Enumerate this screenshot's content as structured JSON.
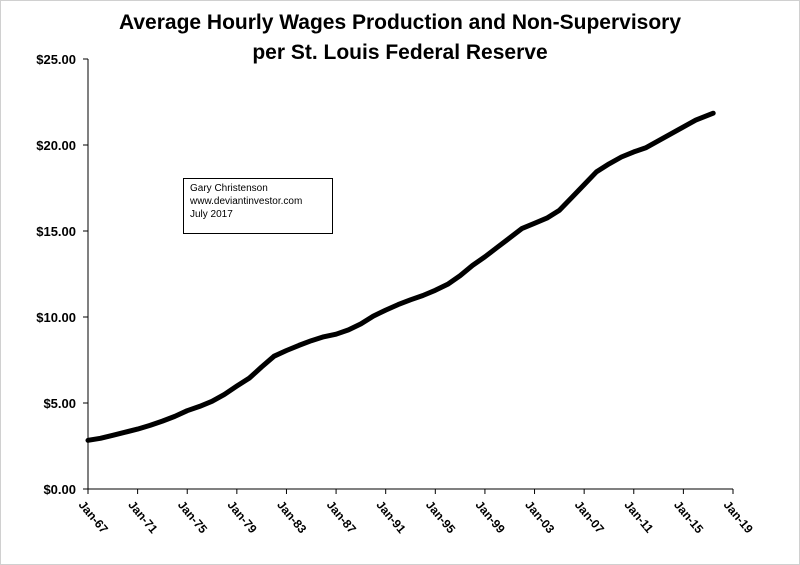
{
  "chart_data": {
    "type": "line",
    "title_line1": "Average Hourly Wages Production and Non-Supervisory",
    "title_line2": "per St. Louis Federal Reserve",
    "annotation": [
      "Gary Christenson",
      "www.deviantinvestor.com",
      "July 2017"
    ],
    "xlabel": "",
    "ylabel": "",
    "x_ticks": [
      "Jan-67",
      "Jan-71",
      "Jan-75",
      "Jan-79",
      "Jan-83",
      "Jan-87",
      "Jan-91",
      "Jan-95",
      "Jan-99",
      "Jan-03",
      "Jan-07",
      "Jan-11",
      "Jan-15",
      "Jan-19"
    ],
    "xlim": [
      1967,
      2019
    ],
    "y_ticks": [
      "$0.00",
      "$5.00",
      "$10.00",
      "$15.00",
      "$20.00",
      "$25.00"
    ],
    "ylim": [
      0,
      25
    ],
    "grid": false,
    "legend": "none",
    "series": [
      {
        "color": "#000000",
        "x": [
          1967,
          1968,
          1969,
          1970,
          1971,
          1972,
          1973,
          1974,
          1975,
          1976,
          1977,
          1978,
          1979,
          1980,
          1981,
          1982,
          1983,
          1984,
          1985,
          1986,
          1987,
          1988,
          1989,
          1990,
          1991,
          1992,
          1993,
          1994,
          1995,
          1996,
          1997,
          1998,
          1999,
          2000,
          2001,
          2002,
          2003,
          2004,
          2005,
          2006,
          2007,
          2008,
          2009,
          2010,
          2011,
          2012,
          2013,
          2014,
          2015,
          2016,
          2017.4
        ],
        "y": [
          2.83,
          2.95,
          3.12,
          3.3,
          3.48,
          3.7,
          3.95,
          4.22,
          4.55,
          4.8,
          5.1,
          5.5,
          5.98,
          6.45,
          7.1,
          7.72,
          8.05,
          8.35,
          8.62,
          8.85,
          9.0,
          9.25,
          9.6,
          10.05,
          10.4,
          10.72,
          11.0,
          11.25,
          11.55,
          11.9,
          12.4,
          13.0,
          13.5,
          14.05,
          14.6,
          15.15,
          15.45,
          15.75,
          16.2,
          16.95,
          17.7,
          18.45,
          18.9,
          19.3,
          19.6,
          19.85,
          20.25,
          20.65,
          21.05,
          21.45,
          21.85
        ]
      }
    ]
  }
}
